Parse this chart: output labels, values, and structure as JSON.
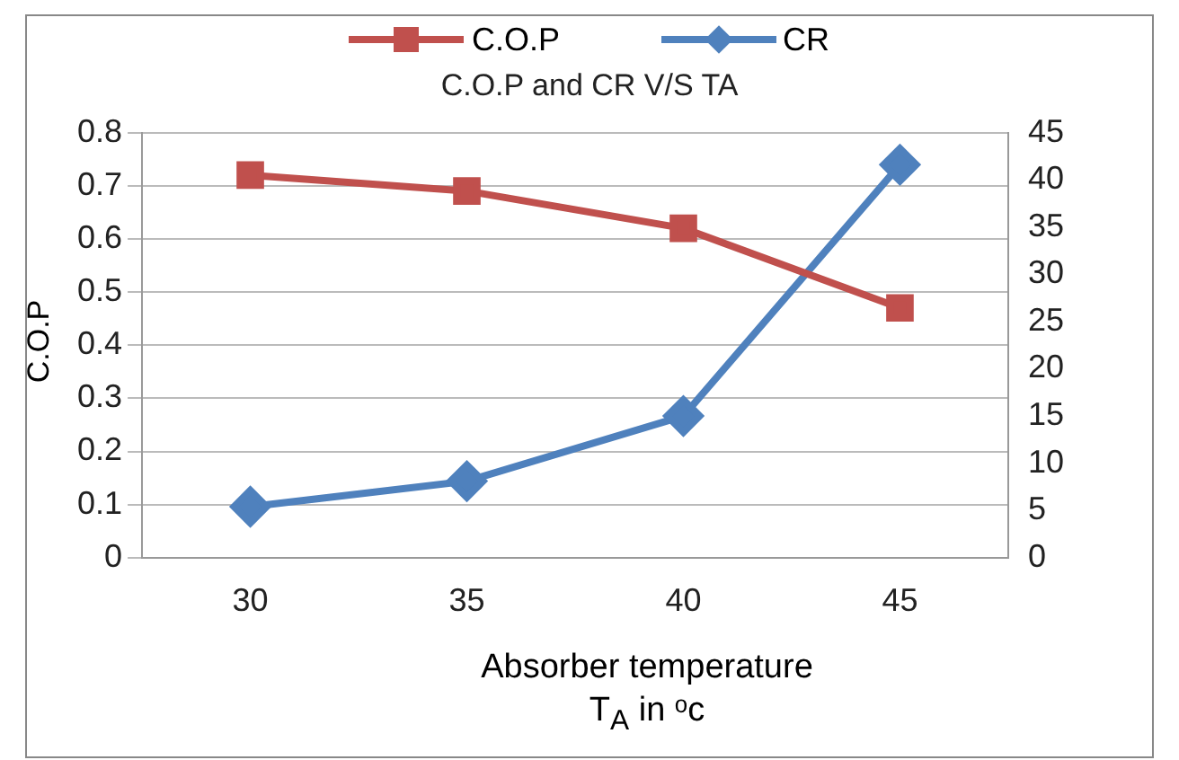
{
  "chart_data": {
    "type": "line",
    "title": "C.O.P and CR  V/S  TA",
    "xlabel": "Absorber temperature\nT$_{A}$ in ᵒc",
    "ylabel": "C.O.P",
    "categories": [
      "30",
      "35",
      "40",
      "45"
    ],
    "series": [
      {
        "name": "C.O.P",
        "color": "#c0504d",
        "values": [
          0.72,
          0.69,
          0.62,
          0.47
        ],
        "marker": "square"
      },
      {
        "name": "CR",
        "color": "#4f81bd",
        "values": [
          5.4,
          8.1,
          15,
          41.6
        ],
        "marker": "diamond",
        "axis": "y2"
      }
    ],
    "ylim": [
      0,
      0.8
    ],
    "yticks": [
      0,
      0.1,
      0.2,
      0.3,
      0.4,
      0.5,
      0.6,
      0.7,
      0.8
    ],
    "y2lim": [
      0,
      45
    ],
    "y2ticks": [
      0,
      5,
      10,
      15,
      20,
      25,
      30,
      35,
      40,
      45
    ],
    "grid": "y",
    "legend": "top"
  }
}
